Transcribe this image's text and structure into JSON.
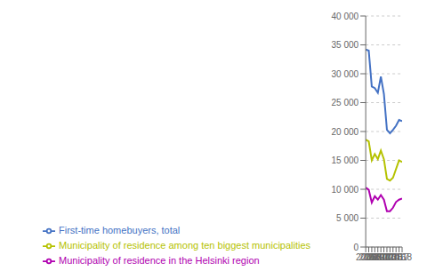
{
  "chart_data": {
    "type": "line",
    "x": [
      2006,
      2007,
      2008,
      2009,
      2010,
      2011,
      2012,
      2013,
      2014,
      2015,
      2016,
      2017,
      2018
    ],
    "series": [
      {
        "name": "First-time homebuyers, total",
        "color": "#4472c4",
        "values": [
          34200,
          34000,
          27800,
          27500,
          26700,
          29500,
          26500,
          20300,
          19700,
          20300,
          21000,
          22000,
          21800
        ]
      },
      {
        "name": "Municipality of residence among ten biggest municipalities",
        "color": "#b5c200",
        "values": [
          18600,
          18300,
          15000,
          16100,
          15200,
          16700,
          15200,
          11800,
          11500,
          12000,
          13500,
          15000,
          14700
        ]
      },
      {
        "name": "Municipality of residence in the Helsinki region",
        "color": "#b000b0",
        "values": [
          10300,
          9900,
          7700,
          8800,
          8200,
          9000,
          8200,
          6200,
          6200,
          6800,
          7800,
          8200,
          8400
        ]
      }
    ],
    "xlim": [
      2006,
      2018
    ],
    "xticks": [
      2006,
      2007,
      2008,
      2009,
      2010,
      2011,
      2012,
      2013,
      2014,
      2015,
      2016,
      2017,
      2018
    ],
    "ylim": [
      0,
      40000
    ],
    "yticks": [
      0,
      {
        "value": 5000,
        "label": "5 000"
      },
      {
        "value": 10000,
        "label": "10 000"
      },
      {
        "value": 15000,
        "label": "15 000"
      },
      {
        "value": 20000,
        "label": "20 000"
      },
      {
        "value": 25000,
        "label": "25 000"
      },
      {
        "value": 30000,
        "label": "30 000"
      },
      {
        "value": 35000,
        "label": "35 000"
      },
      {
        "value": 40000,
        "label": "40 000"
      }
    ],
    "grid": true,
    "legend": "bottom"
  }
}
